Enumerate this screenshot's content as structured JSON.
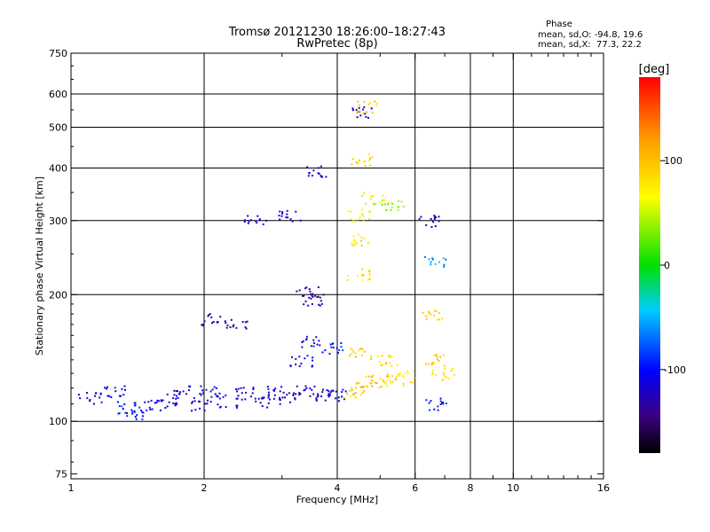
{
  "chart_data": {
    "type": "scatter",
    "title": "Tromsø 20121230 18:26:00–18:27:43",
    "subtitle": "RwPretec (8p)",
    "xlabel": "Frequency [MHz]",
    "ylabel": "Stationary phase Virtual Height [km]",
    "x_scale": "log",
    "y_scale": "log",
    "xlim": [
      1,
      16
    ],
    "ylim": [
      73,
      750
    ],
    "x_ticks": [
      1,
      2,
      4,
      6,
      8,
      10,
      16
    ],
    "x_tick_labels": [
      "1",
      "2",
      "4",
      "6",
      "8",
      "10",
      "16"
    ],
    "x_gridlines": [
      2,
      4,
      6,
      8,
      10
    ],
    "x_minor_ticks": [
      3,
      5,
      7,
      9,
      11,
      12,
      13,
      14,
      15
    ],
    "y_ticks": [
      75,
      100,
      200,
      300,
      400,
      500,
      600,
      750
    ],
    "y_tick_labels": [
      "75",
      "100",
      "200",
      "300",
      "400",
      "500",
      "600",
      "750"
    ],
    "y_gridlines": [
      100,
      200,
      300,
      400,
      500,
      600
    ],
    "grid": true,
    "stats": {
      "heading": "Phase",
      "line_o": "mean, sd,O: -94.8, 19.6",
      "line_x": "mean, sd,X:  77.3, 22.2"
    },
    "colorbar": {
      "label": "[deg]",
      "range": [
        -180,
        180
      ],
      "ticks": [
        100,
        0,
        -100
      ],
      "tick_labels": [
        "100",
        "0",
        "-100"
      ],
      "placement": "right"
    },
    "clusters": [
      {
        "x": 1.1,
        "y": 114,
        "phase": -110
      },
      {
        "x": 1.25,
        "y": 118,
        "phase": -100
      },
      {
        "x": 1.32,
        "y": 108,
        "phase": -90
      },
      {
        "x": 1.38,
        "y": 105,
        "phase": -100
      },
      {
        "x": 1.55,
        "y": 110,
        "phase": -110
      },
      {
        "x": 1.65,
        "y": 113,
        "phase": -110
      },
      {
        "x": 1.8,
        "y": 118,
        "phase": -120
      },
      {
        "x": 1.95,
        "y": 110,
        "phase": -120
      },
      {
        "x": 2.05,
        "y": 118,
        "phase": -110
      },
      {
        "x": 2.25,
        "y": 112,
        "phase": -110
      },
      {
        "x": 2.45,
        "y": 117,
        "phase": -115
      },
      {
        "x": 2.7,
        "y": 112,
        "phase": -120
      },
      {
        "x": 2.9,
        "y": 118,
        "phase": -115
      },
      {
        "x": 3.1,
        "y": 114,
        "phase": -125
      },
      {
        "x": 3.4,
        "y": 118,
        "phase": -120
      },
      {
        "x": 3.7,
        "y": 116,
        "phase": -120
      },
      {
        "x": 4.0,
        "y": 116,
        "phase": -110
      },
      {
        "x": 4.3,
        "y": 118,
        "phase": 90
      },
      {
        "x": 4.6,
        "y": 120,
        "phase": 100
      },
      {
        "x": 4.9,
        "y": 125,
        "phase": 95
      },
      {
        "x": 5.3,
        "y": 126,
        "phase": 85
      },
      {
        "x": 5.6,
        "y": 128,
        "phase": 80
      },
      {
        "x": 3.3,
        "y": 140,
        "phase": -110
      },
      {
        "x": 3.5,
        "y": 155,
        "phase": -105
      },
      {
        "x": 3.9,
        "y": 150,
        "phase": -100
      },
      {
        "x": 4.5,
        "y": 145,
        "phase": 95
      },
      {
        "x": 5.2,
        "y": 140,
        "phase": 90
      },
      {
        "x": 2.05,
        "y": 175,
        "phase": -130
      },
      {
        "x": 2.35,
        "y": 172,
        "phase": -130
      },
      {
        "x": 3.4,
        "y": 205,
        "phase": -135
      },
      {
        "x": 3.55,
        "y": 195,
        "phase": -125
      },
      {
        "x": 4.45,
        "y": 225,
        "phase": 85
      },
      {
        "x": 4.55,
        "y": 270,
        "phase": 80
      },
      {
        "x": 4.45,
        "y": 310,
        "phase": 75
      },
      {
        "x": 4.8,
        "y": 340,
        "phase": 60
      },
      {
        "x": 5.3,
        "y": 330,
        "phase": 40
      },
      {
        "x": 3.6,
        "y": 395,
        "phase": -120
      },
      {
        "x": 4.55,
        "y": 420,
        "phase": 90
      },
      {
        "x": 4.5,
        "y": 545,
        "phase": -120
      },
      {
        "x": 4.65,
        "y": 560,
        "phase": 90
      },
      {
        "x": 6.4,
        "y": 300,
        "phase": -120
      },
      {
        "x": 6.6,
        "y": 240,
        "phase": -60
      },
      {
        "x": 6.5,
        "y": 180,
        "phase": 90
      },
      {
        "x": 6.6,
        "y": 140,
        "phase": 90
      },
      {
        "x": 6.9,
        "y": 130,
        "phase": 85
      },
      {
        "x": 6.7,
        "y": 110,
        "phase": -100
      },
      {
        "x": 2.6,
        "y": 300,
        "phase": -110
      },
      {
        "x": 3.1,
        "y": 310,
        "phase": -115
      }
    ]
  }
}
